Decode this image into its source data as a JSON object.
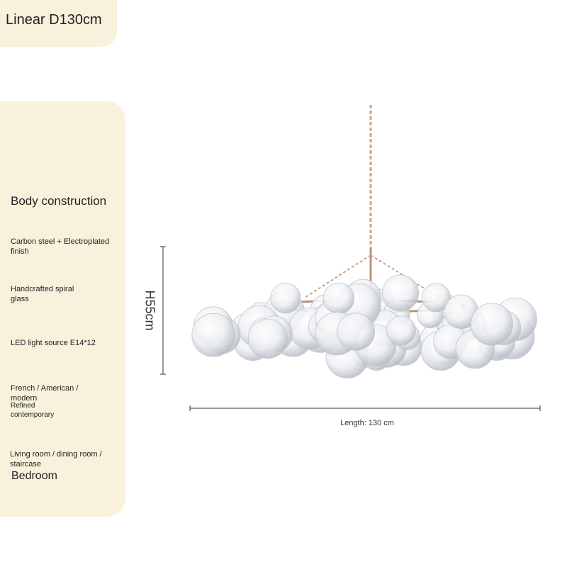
{
  "header": {
    "title": "Linear D130cm"
  },
  "specs": {
    "heading": "Body construction",
    "items": [
      "Carbon steel + Electroplated finish",
      "Handcrafted spiral glass",
      "LED light source E14*12",
      "French / American / modern",
      "Refined contemporary",
      "Living room / dining room / staircase",
      "Bedroom"
    ]
  },
  "dimensions": {
    "height": "H55cm",
    "length": "Length: 130 cm"
  }
}
